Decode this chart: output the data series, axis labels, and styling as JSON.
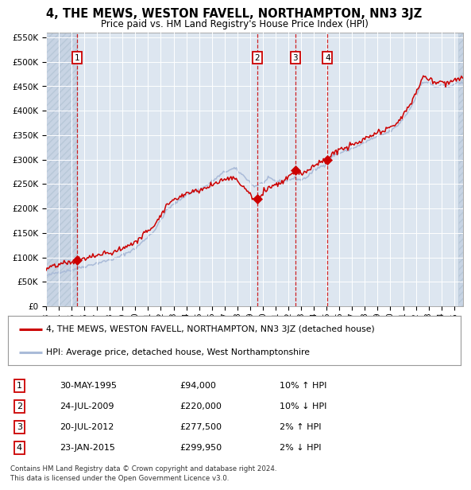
{
  "title": "4, THE MEWS, WESTON FAVELL, NORTHAMPTON, NN3 3JZ",
  "subtitle": "Price paid vs. HM Land Registry's House Price Index (HPI)",
  "legend_line1": "4, THE MEWS, WESTON FAVELL, NORTHAMPTON, NN3 3JZ (detached house)",
  "legend_line2": "HPI: Average price, detached house, West Northamptonshire",
  "footnote1": "Contains HM Land Registry data © Crown copyright and database right 2024.",
  "footnote2": "This data is licensed under the Open Government Licence v3.0.",
  "transactions": [
    {
      "num": 1,
      "date": "30-MAY-1995",
      "price": 94000,
      "price_str": "£94,000",
      "pct": "10% ↑ HPI",
      "year_x": 1995.41
    },
    {
      "num": 2,
      "date": "24-JUL-2009",
      "price": 220000,
      "price_str": "£220,000",
      "pct": "10% ↓ HPI",
      "year_x": 2009.56
    },
    {
      "num": 3,
      "date": "20-JUL-2012",
      "price": 277500,
      "price_str": "£277,500",
      "pct": "2% ↑ HPI",
      "year_x": 2012.55
    },
    {
      "num": 4,
      "date": "23-JAN-2015",
      "price": 299950,
      "price_str": "£299,950",
      "pct": "2% ↓ HPI",
      "year_x": 2015.07
    }
  ],
  "hpi_color": "#aabbd8",
  "price_color": "#cc0000",
  "marker_color": "#cc0000",
  "dashed_color": "#cc0000",
  "background_plot": "#dde6f0",
  "background_hatched_color": "#c8d4e4",
  "ylim": [
    0,
    560000
  ],
  "yticks": [
    0,
    50000,
    100000,
    150000,
    200000,
    250000,
    300000,
    350000,
    400000,
    450000,
    500000,
    550000
  ],
  "xlim_start": 1993.0,
  "xlim_end": 2025.7,
  "xtick_years": [
    1993,
    1994,
    1995,
    1996,
    1997,
    1998,
    1999,
    2000,
    2001,
    2002,
    2003,
    2004,
    2005,
    2006,
    2007,
    2008,
    2009,
    2010,
    2011,
    2012,
    2013,
    2014,
    2015,
    2016,
    2017,
    2018,
    2019,
    2020,
    2021,
    2022,
    2023,
    2024,
    2025
  ]
}
